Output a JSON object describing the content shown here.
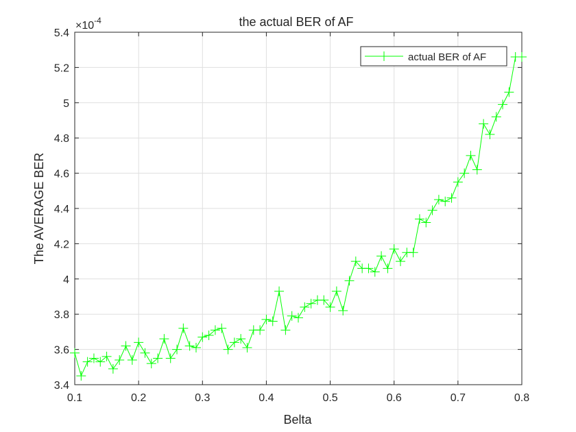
{
  "chart_data": {
    "type": "line",
    "title": "the actual BER of AF",
    "xlabel": "Belta",
    "ylabel": "The AVERAGE BER",
    "exponent_label": "×10",
    "exponent_power": "-4",
    "xlim": [
      0.1,
      0.8
    ],
    "ylim": [
      3.4,
      5.4
    ],
    "xticks": [
      0.1,
      0.2,
      0.3,
      0.4,
      0.5,
      0.6,
      0.7,
      0.8
    ],
    "xtick_labels": [
      "0.1",
      "0.2",
      "0.3",
      "0.4",
      "0.5",
      "0.6",
      "0.7",
      "0.8"
    ],
    "yticks": [
      3.4,
      3.6,
      3.8,
      4.0,
      4.2,
      4.4,
      4.6,
      4.8,
      5.0,
      5.2,
      5.4
    ],
    "ytick_labels": [
      "3.4",
      "3.6",
      "3.8",
      "4",
      "4.2",
      "4.4",
      "4.6",
      "4.8",
      "5",
      "5.2",
      "5.4"
    ],
    "grid": true,
    "legend_position": "top-right",
    "series": [
      {
        "name": "actual BER of AF",
        "color": "#00ff00",
        "marker": "+",
        "x": [
          0.1,
          0.11,
          0.12,
          0.13,
          0.14,
          0.15,
          0.16,
          0.17,
          0.18,
          0.19,
          0.2,
          0.21,
          0.22,
          0.23,
          0.24,
          0.25,
          0.26,
          0.27,
          0.28,
          0.29,
          0.3,
          0.31,
          0.32,
          0.33,
          0.34,
          0.35,
          0.36,
          0.37,
          0.38,
          0.39,
          0.4,
          0.41,
          0.42,
          0.43,
          0.44,
          0.45,
          0.46,
          0.47,
          0.48,
          0.49,
          0.5,
          0.51,
          0.52,
          0.53,
          0.54,
          0.55,
          0.56,
          0.57,
          0.58,
          0.59,
          0.6,
          0.61,
          0.62,
          0.63,
          0.64,
          0.65,
          0.66,
          0.67,
          0.68,
          0.69,
          0.7,
          0.71,
          0.72,
          0.73,
          0.74,
          0.75,
          0.76,
          0.77,
          0.78,
          0.79,
          0.8
        ],
        "values": [
          3.58,
          3.45,
          3.53,
          3.55,
          3.53,
          3.56,
          3.49,
          3.54,
          3.62,
          3.54,
          3.64,
          3.58,
          3.52,
          3.55,
          3.66,
          3.55,
          3.6,
          3.72,
          3.62,
          3.61,
          3.67,
          3.68,
          3.71,
          3.72,
          3.6,
          3.64,
          3.66,
          3.61,
          3.71,
          3.71,
          3.77,
          3.76,
          3.93,
          3.71,
          3.79,
          3.78,
          3.84,
          3.86,
          3.88,
          3.88,
          3.84,
          3.93,
          3.82,
          3.99,
          4.1,
          4.06,
          4.06,
          4.04,
          4.13,
          4.06,
          4.17,
          4.1,
          4.15,
          4.15,
          4.34,
          4.32,
          4.39,
          4.45,
          4.44,
          4.46,
          4.55,
          4.6,
          4.7,
          4.62,
          4.88,
          4.82,
          4.92,
          4.99,
          5.06,
          5.26,
          5.26
        ]
      }
    ]
  }
}
